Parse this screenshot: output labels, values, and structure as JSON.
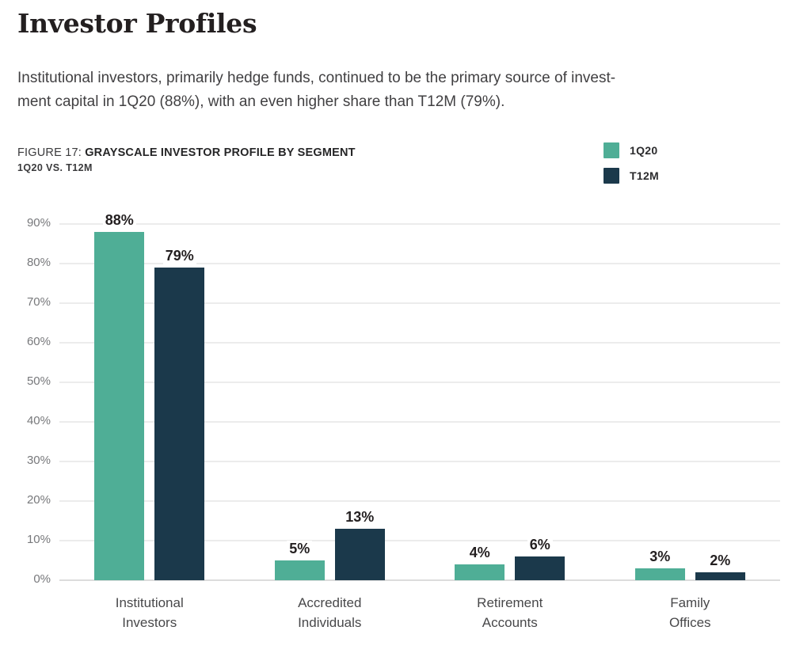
{
  "title": "Investor Profiles",
  "paragraph": {
    "line1": "Institutional investors, primarily hedge funds, continued to be the primary source of invest-",
    "line2": "ment capital in 1Q20 (88%), with an even higher share than T12M (79%)."
  },
  "figure": {
    "label": "FIGURE 17:",
    "title": "GRAYSCALE INVESTOR PROFILE BY SEGMENT",
    "subtitle": "1Q20 VS. T12M"
  },
  "chart_data": {
    "type": "bar",
    "grouped": true,
    "title": "GRAYSCALE INVESTOR PROFILE BY SEGMENT",
    "subtitle": "1Q20 VS. T12M",
    "categories": [
      [
        "Institutional",
        "Investors"
      ],
      [
        "Accredited",
        "Individuals"
      ],
      [
        "Retirement",
        "Accounts"
      ],
      [
        "Family",
        "Offices"
      ]
    ],
    "series": [
      {
        "name": "1Q20",
        "color": "#4FAE96",
        "values": [
          88,
          5,
          4,
          3
        ]
      },
      {
        "name": "T12M",
        "color": "#1B394B",
        "values": [
          79,
          13,
          6,
          2
        ]
      }
    ],
    "xlabel": "",
    "ylabel": "",
    "ylim": [
      0,
      90
    ],
    "ytick_step": 10,
    "ytick_suffix": "%",
    "value_label_suffix": "%",
    "grid": true,
    "legend_position": "top-right"
  },
  "colors": {
    "series_1q20": "#4FAE96",
    "series_t12m": "#1B394B",
    "gridline": "#ECECEC",
    "baseline": "#DCDCDC",
    "axis_text": "#77787B",
    "value_text": "#231F20",
    "body_text": "#414042"
  }
}
